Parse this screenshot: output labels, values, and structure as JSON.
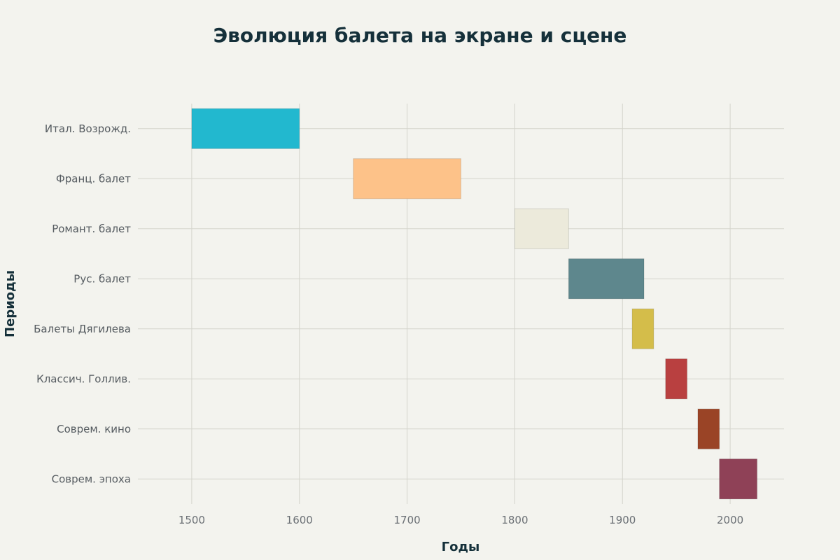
{
  "chart_data": {
    "type": "bar",
    "orientation": "horizontal-range",
    "title": "Эволюция балета на экране и сцене",
    "xlabel": "Годы",
    "ylabel": "Периоды",
    "xlim": [
      1450,
      2050
    ],
    "x_ticks": [
      "1500",
      "1600",
      "1700",
      "1800",
      "1900",
      "2000"
    ],
    "grid": true,
    "legend": "none",
    "categories": [
      "Итал. Возрожд.",
      "Франц. балет",
      "Романт. балет",
      "Рус. балет",
      "Балеты Дягилева",
      "Классич. Голлив.",
      "Соврем. кино",
      "Соврем. эпоха"
    ],
    "ranges": [
      {
        "start": 1500,
        "end": 1600,
        "color": "#22b8cf"
      },
      {
        "start": 1650,
        "end": 1750,
        "color": "#fdc289"
      },
      {
        "start": 1800,
        "end": 1850,
        "color": "#eceadb"
      },
      {
        "start": 1850,
        "end": 1920,
        "color": "#5e878d"
      },
      {
        "start": 1909,
        "end": 1929,
        "color": "#d4bd4a"
      },
      {
        "start": 1940,
        "end": 1960,
        "color": "#b94040"
      },
      {
        "start": 1970,
        "end": 1990,
        "color": "#9a4426"
      },
      {
        "start": 1990,
        "end": 2025,
        "color": "#8f4157"
      }
    ]
  }
}
